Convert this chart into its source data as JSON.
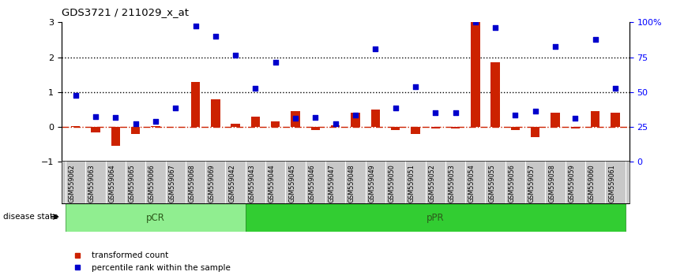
{
  "title": "GDS3721 / 211029_x_at",
  "categories": [
    "GSM559062",
    "GSM559063",
    "GSM559064",
    "GSM559065",
    "GSM559066",
    "GSM559067",
    "GSM559068",
    "GSM559069",
    "GSM559042",
    "GSM559043",
    "GSM559044",
    "GSM559045",
    "GSM559046",
    "GSM559047",
    "GSM559048",
    "GSM559049",
    "GSM559050",
    "GSM559051",
    "GSM559052",
    "GSM559053",
    "GSM559054",
    "GSM559055",
    "GSM559056",
    "GSM559057",
    "GSM559058",
    "GSM559059",
    "GSM559060",
    "GSM559061"
  ],
  "transformed_count": [
    0.02,
    -0.15,
    -0.55,
    -0.2,
    0.02,
    0.0,
    1.3,
    0.8,
    0.1,
    0.3,
    0.15,
    0.45,
    -0.1,
    0.05,
    0.4,
    0.5,
    -0.1,
    -0.2,
    -0.05,
    -0.05,
    3.0,
    1.85,
    -0.1,
    -0.3,
    0.4,
    -0.05,
    0.45,
    0.4
  ],
  "percentile_rank_left_axis": [
    0.9,
    0.3,
    0.28,
    0.1,
    0.15,
    0.55,
    2.9,
    2.6,
    2.05,
    1.1,
    1.85,
    0.25,
    0.28,
    0.1,
    0.35,
    2.25,
    0.55,
    1.15,
    0.4,
    0.4,
    3.0,
    2.85,
    0.35,
    0.45,
    2.3,
    0.25,
    2.5,
    1.1
  ],
  "pcr_count": 9,
  "bar_color": "#CC2200",
  "dot_color": "#0000CC",
  "ylim": [
    -1,
    3
  ],
  "yticks_left": [
    -1,
    0,
    1,
    2,
    3
  ],
  "ytick_labels_right": [
    "0",
    "25",
    "50",
    "75",
    "100%"
  ],
  "dotted_lines": [
    1,
    2
  ],
  "legend_items": [
    "transformed count",
    "percentile rank within the sample"
  ],
  "disease_state_label": "disease state"
}
